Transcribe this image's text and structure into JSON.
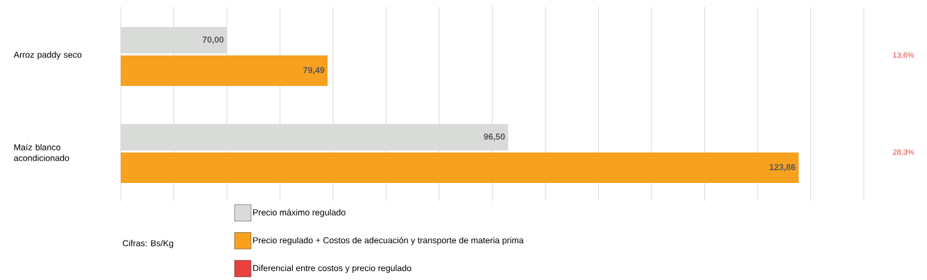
{
  "chart_data": {
    "type": "bar",
    "orientation": "horizontal",
    "categories": [
      "Arroz paddy seco",
      "Maíz blanco acondicionado"
    ],
    "series": [
      {
        "name": "Precio máximo regulado",
        "color": "#d9dbd9",
        "values": [
          70.0,
          96.5
        ],
        "value_labels": [
          "70,00",
          "96,50"
        ]
      },
      {
        "name": "Precio regulado + Costos de adecuación y transporte de materia prima",
        "color": "#f7a11f",
        "values": [
          79.49,
          123.86
        ],
        "value_labels": [
          "79,49",
          "123,86"
        ]
      },
      {
        "name": "Diferencial entre costos y precio regulado",
        "color": "#e8403f",
        "values": [
          null,
          null
        ]
      }
    ],
    "xlim": [
      60,
      130
    ],
    "xticks": [
      {
        "value": 60,
        "label": null
      },
      {
        "value": 65,
        "label": null
      },
      {
        "value": 70,
        "label": null
      },
      {
        "value": 75,
        "label": null
      },
      {
        "value": 80,
        "label": null
      },
      {
        "value": 85,
        "label": null
      },
      {
        "value": 90,
        "label": null
      },
      {
        "value": 95,
        "label": null
      },
      {
        "value": 100,
        "label": null
      },
      {
        "value": 105,
        "label": null
      },
      {
        "value": 110,
        "label": null
      },
      {
        "value": 115,
        "label": null
      },
      {
        "value": 120,
        "label": null
      },
      {
        "value": 125,
        "label": null
      },
      {
        "value": 130,
        "label": null
      }
    ],
    "tick_labels": "y",
    "grid": "x",
    "legend": "bottom",
    "annotations": [
      "13,6%",
      "28,3%",
      "Cifras: Bs/Kg"
    ]
  }
}
